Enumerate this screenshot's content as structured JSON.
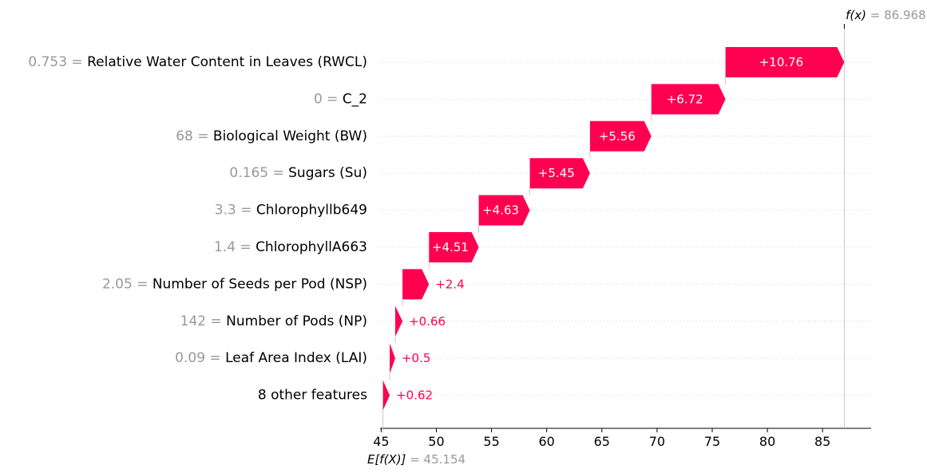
{
  "chart_data": {
    "type": "waterfall",
    "fx_label": "f(x)",
    "fx_value_text": "86.968",
    "fx_value": 86.968,
    "base_label": "E[f(X)]",
    "base_value_text": "45.154",
    "base_value": 45.154,
    "xlim": [
      44.9,
      89.4
    ],
    "xticks": [
      45,
      50,
      55,
      60,
      65,
      70,
      75,
      80,
      85
    ],
    "features": [
      {
        "value": "0.753",
        "name": "Relative Water Content in Leaves (RWCL)",
        "contribution": 10.76,
        "label": "+10.76"
      },
      {
        "value": "0",
        "name": "C_2",
        "contribution": 6.72,
        "label": "+6.72"
      },
      {
        "value": "68",
        "name": "Biological Weight (BW)",
        "contribution": 5.56,
        "label": "+5.56"
      },
      {
        "value": "0.165",
        "name": "Sugars (Su)",
        "contribution": 5.45,
        "label": "+5.45"
      },
      {
        "value": "3.3",
        "name": "Chlorophyllb649",
        "contribution": 4.63,
        "label": "+4.63"
      },
      {
        "value": "1.4",
        "name": "ChlorophyllA663",
        "contribution": 4.51,
        "label": "+4.51"
      },
      {
        "value": "2.05",
        "name": "Number of Seeds per Pod (NSP)",
        "contribution": 2.4,
        "label": "+2.4"
      },
      {
        "value": "142",
        "name": "Number of Pods (NP)",
        "contribution": 0.66,
        "label": "+0.66"
      },
      {
        "value": "0.09",
        "name": "Leaf Area Index (LAI)",
        "contribution": 0.5,
        "label": "+0.5"
      },
      {
        "value": "",
        "name": "8 other features",
        "contribution": 0.62,
        "label": "+0.62"
      }
    ],
    "colors": {
      "positive": "#ff0051",
      "value_text": "#999999",
      "label_text": "#000000",
      "inside_label": "#ffffff",
      "grid": "#cccccc",
      "axis": "#000000"
    }
  }
}
